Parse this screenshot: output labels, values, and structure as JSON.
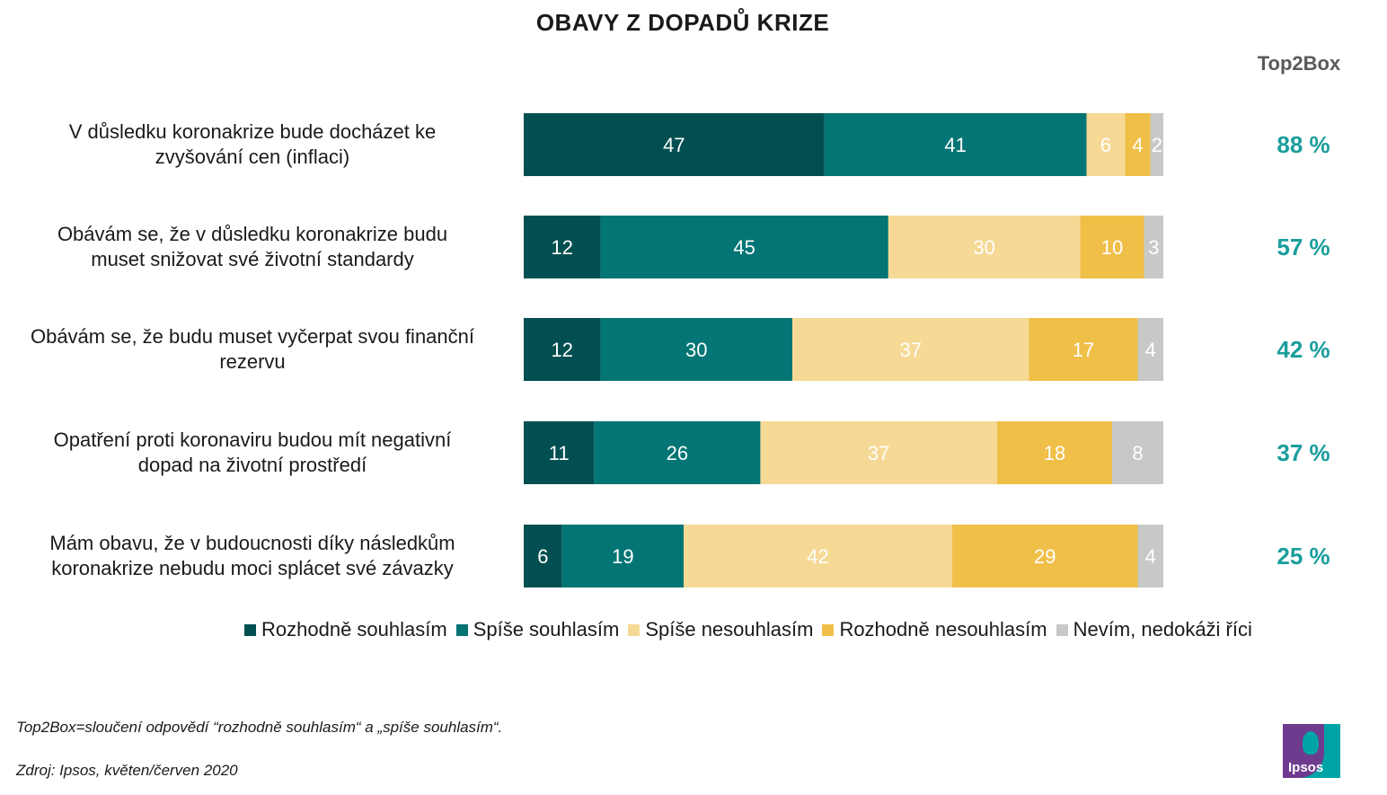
{
  "title": "OBAVY Z DOPADŮ KRIZE",
  "top2box_header": "Top2Box",
  "colors": {
    "rozhodne_souhlasim": "#024f51",
    "spise_souhlasim": "#037574",
    "spise_nesouhlasim": "#f6d995",
    "rozhodne_nesouhlasim": "#f0bf48",
    "nevim": "#c8c8c8",
    "top2box_text": "#1a9e9c"
  },
  "chart_data": {
    "type": "bar",
    "orientation": "horizontal",
    "stacked": true,
    "categories": [
      "V důsledku koronakrize bude docházet ke zvyšování cen (inflaci)",
      "Obávám se, že v důsledku koronakrize budu muset snižovat své životní standardy",
      "Obávám se, že budu muset vyčerpat svou finanční rezervu",
      "Opatření proti koronaviru budou mít negativní dopad na životní prostředí",
      "Mám obavu, že v budoucnosti díky následkům koronakrize nebudu moci splácet své závazky"
    ],
    "label_lines": [
      [
        "V důsledku koronakrize bude docházet ke",
        "zvyšování cen (inflaci)"
      ],
      [
        "Obávám se, že v důsledku koronakrize budu",
        "muset snižovat své životní standardy"
      ],
      [
        "Obávám se, že budu muset vyčerpat svou finanční",
        "rezervu"
      ],
      [
        "Opatření proti koronaviru budou mít negativní",
        "dopad na životní prostředí"
      ],
      [
        "Mám obavu, že v budoucnosti díky následkům",
        "koronakrize nebudu moci splácet své závazky"
      ]
    ],
    "series": [
      {
        "name": "Rozhodně souhlasím",
        "values": [
          47,
          12,
          12,
          11,
          6
        ]
      },
      {
        "name": "Spíše souhlasím",
        "values": [
          41,
          45,
          30,
          26,
          19
        ]
      },
      {
        "name": "Spíše nesouhlasím",
        "values": [
          6,
          30,
          37,
          37,
          42
        ]
      },
      {
        "name": "Rozhodně nesouhlasím",
        "values": [
          4,
          10,
          17,
          18,
          29
        ]
      },
      {
        "name": "Nevím, nedokáži říci",
        "values": [
          2,
          3,
          4,
          8,
          4
        ]
      }
    ],
    "top2box": [
      "88 %",
      "57 %",
      "42 %",
      "37 %",
      "25 %"
    ],
    "xlim": [
      0,
      100
    ],
    "legend": "bottom"
  },
  "legend": [
    "Rozhodně souhlasím",
    "Spíše souhlasím",
    "Spíše nesouhlasím",
    "Rozhodně nesouhlasím",
    "Nevím, nedokáži říci"
  ],
  "footnotes": {
    "definition": "Top2Box=sloučení odpovědí “rozhodně souhlasím“ a „spíše souhlasím“.",
    "source": "Zdroj: Ipsos, květen/červen 2020"
  },
  "logo_text": "Ipsos"
}
